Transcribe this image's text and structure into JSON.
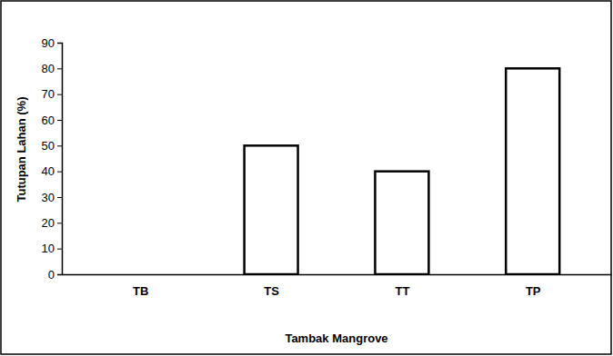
{
  "chart_data": {
    "type": "bar",
    "x_label": "Tambak Mangrove",
    "y_label": "Tutupan Lahan (%)",
    "categories": [
      "TB",
      "TS",
      "TT",
      "TP"
    ],
    "values": [
      0,
      50,
      40,
      80
    ],
    "color": "#ffffff",
    "ylim": [
      0,
      90
    ],
    "yticks": [
      0,
      10,
      20,
      30,
      40,
      50,
      60,
      70,
      80,
      90
    ],
    "grid": false
  }
}
